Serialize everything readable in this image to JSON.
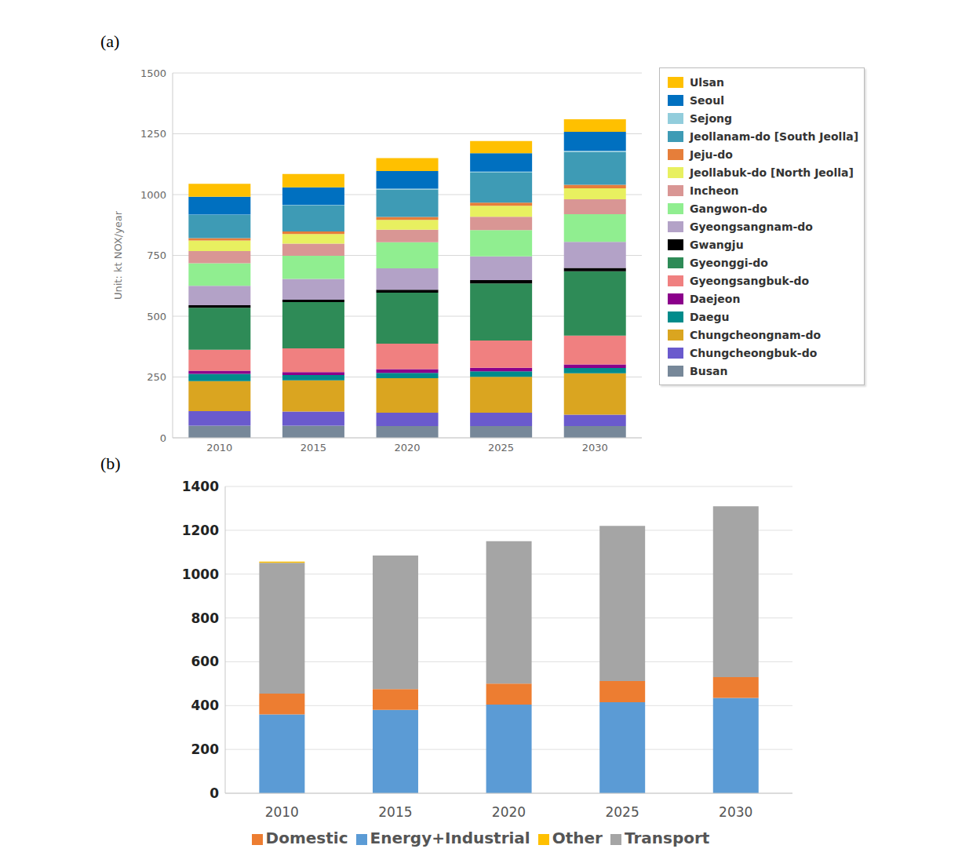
{
  "chart_data": [
    {
      "type": "bar",
      "title": "(a)",
      "y_label": "Unit: kt NOX/year",
      "stacked": true,
      "grid": true,
      "legend": "right",
      "categories": [
        "2010",
        "2015",
        "2020",
        "2025",
        "2030"
      ],
      "ylim": [
        0,
        1500
      ],
      "yticks": [
        0,
        250,
        500,
        750,
        1000,
        1250,
        1500
      ],
      "series": [
        {
          "name": "Ulsan",
          "color": "#FFC000",
          "values": [
            53,
            55,
            53,
            50,
            52
          ]
        },
        {
          "name": "Seoul",
          "color": "#0070C0",
          "values": [
            73,
            73,
            73,
            76,
            78
          ]
        },
        {
          "name": "Sejong",
          "color": "#92CDDC",
          "values": [
            1,
            2,
            3,
            4,
            5
          ]
        },
        {
          "name": "Jeollanam-do [South Jeolla]",
          "color": "#3E9BB5",
          "values": [
            96,
            107,
            113,
            123,
            135
          ]
        },
        {
          "name": "Jeju-do",
          "color": "#E67E3A",
          "values": [
            10,
            10,
            12,
            13,
            14
          ]
        },
        {
          "name": "Jeollabuk-do [North Jeolla]",
          "color": "#E8F060",
          "values": [
            43,
            40,
            40,
            45,
            45
          ]
        },
        {
          "name": "Incheon",
          "color": "#D99694",
          "values": [
            50,
            50,
            52,
            55,
            62
          ]
        },
        {
          "name": "Gangwon-do",
          "color": "#90EE90",
          "values": [
            93,
            95,
            107,
            108,
            113
          ]
        },
        {
          "name": "Gyeongsangnam-do",
          "color": "#B3A2C7",
          "values": [
            80,
            85,
            88,
            98,
            108
          ]
        },
        {
          "name": "Gwangju",
          "color": "#000000",
          "values": [
            10,
            10,
            12,
            13,
            13
          ]
        },
        {
          "name": "Gyeonggi-do",
          "color": "#2E8B57",
          "values": [
            173,
            190,
            210,
            235,
            265
          ]
        },
        {
          "name": "Gyeongsangbuk-do",
          "color": "#F08080",
          "values": [
            86,
            98,
            105,
            112,
            118
          ]
        },
        {
          "name": "Daejeon",
          "color": "#8B008B",
          "values": [
            13,
            12,
            15,
            15,
            15
          ]
        },
        {
          "name": "Daegu",
          "color": "#008B8B",
          "values": [
            30,
            22,
            22,
            22,
            22
          ]
        },
        {
          "name": "Chungcheongnam-do",
          "color": "#DAA520",
          "values": [
            123,
            128,
            142,
            148,
            170
          ]
        },
        {
          "name": "Chungcheongbuk-do",
          "color": "#6A5ACD",
          "values": [
            60,
            58,
            55,
            55,
            47
          ]
        },
        {
          "name": "Busan",
          "color": "#778899",
          "values": [
            50,
            50,
            48,
            48,
            48
          ]
        }
      ]
    },
    {
      "type": "bar",
      "title": "(b)",
      "stacked": true,
      "grid": true,
      "legend": "bottom",
      "categories": [
        "2010",
        "2015",
        "2020",
        "2025",
        "2030"
      ],
      "ylim": [
        0,
        1400
      ],
      "yticks": [
        0,
        200,
        400,
        600,
        800,
        1000,
        1200,
        1400
      ],
      "series": [
        {
          "name": "Energy+Industrial",
          "color": "#5B9BD5",
          "values": [
            360,
            380,
            405,
            415,
            435
          ]
        },
        {
          "name": "Domestic",
          "color": "#ED7D31",
          "values": [
            95,
            95,
            95,
            97,
            95
          ]
        },
        {
          "name": "Transport",
          "color": "#A5A5A5",
          "values": [
            597,
            610,
            650,
            708,
            780
          ]
        },
        {
          "name": "Other",
          "color": "#FFC000",
          "values": [
            5,
            0,
            0,
            0,
            0
          ]
        }
      ]
    }
  ]
}
